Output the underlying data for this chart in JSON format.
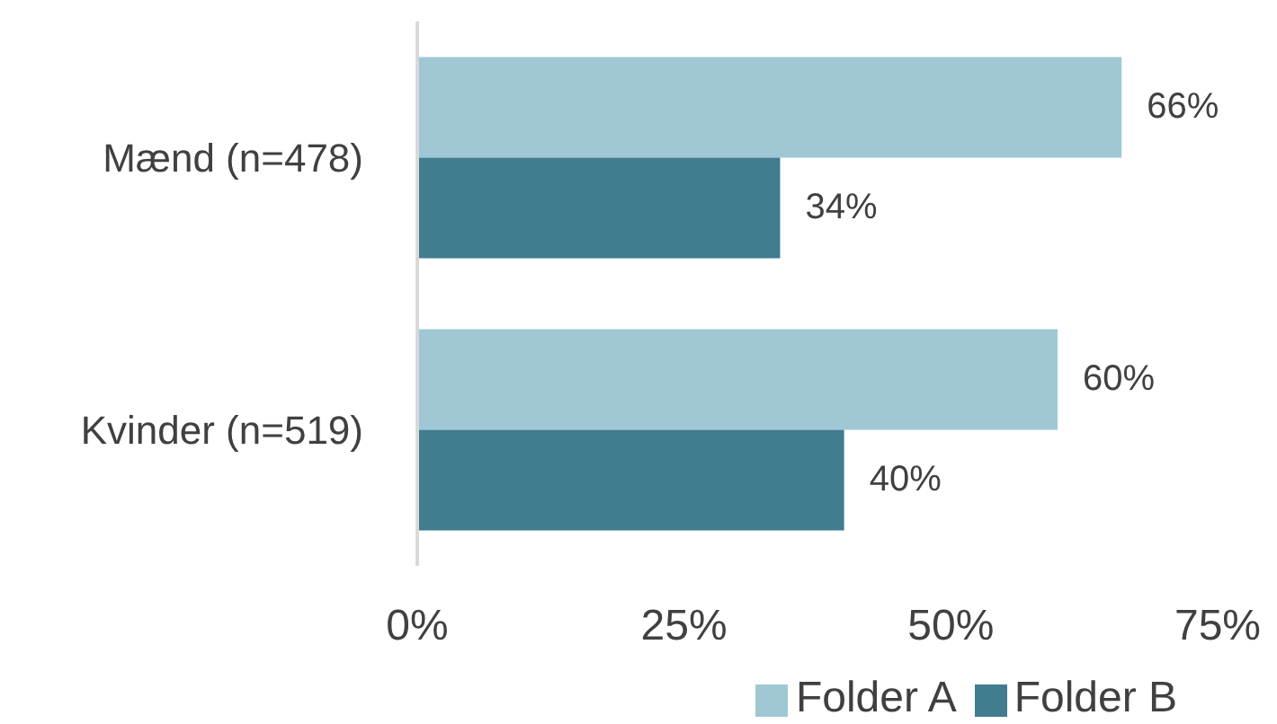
{
  "chart_data": {
    "type": "bar",
    "orientation": "horizontal",
    "categories": [
      "Mænd (n=478)",
      "Kvinder (n=519)"
    ],
    "series": [
      {
        "name": "Folder A",
        "color": "#9fc8d4",
        "values": [
          66,
          60
        ],
        "value_labels": [
          "66%",
          "60%"
        ]
      },
      {
        "name": "Folder B",
        "color": "#417d8f",
        "values": [
          34,
          40
        ],
        "value_labels": [
          "34%",
          "40%"
        ]
      }
    ],
    "xlim": [
      0,
      75
    ],
    "xticks": [
      {
        "value": 0,
        "label": "0%"
      },
      {
        "value": 25,
        "label": "25%"
      },
      {
        "value": 50,
        "label": "50%"
      },
      {
        "value": 75,
        "label": "75%"
      }
    ],
    "legend": "bottom"
  }
}
